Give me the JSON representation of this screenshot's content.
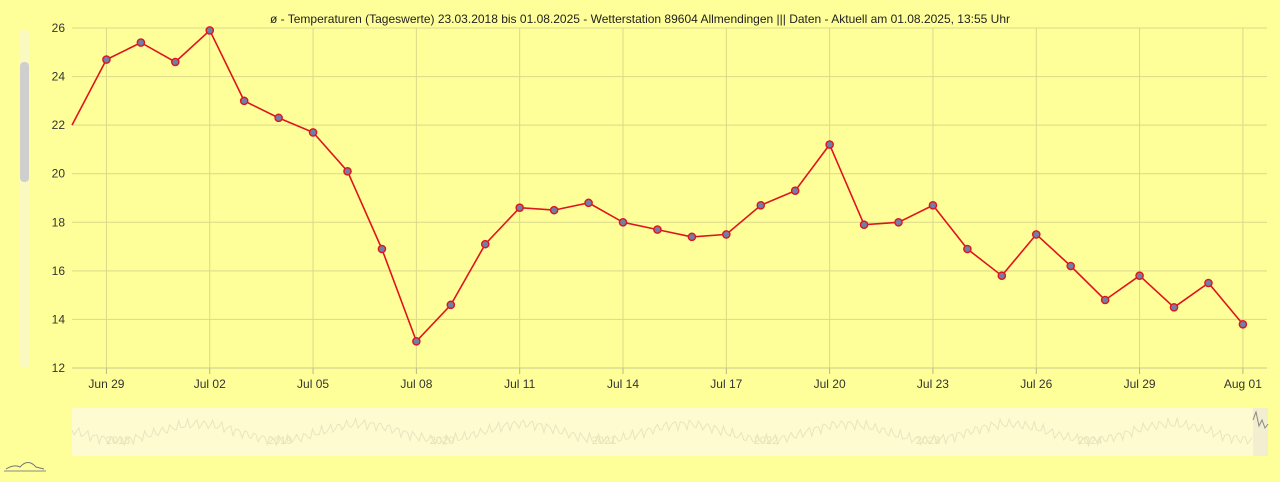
{
  "chart_data": {
    "type": "line",
    "title": "ø - Temperaturen (Tageswerte) 23.03.2018 bis 01.08.2025 - Wetterstation 89604 Allmendingen ||| Daten - Aktuell am 01.08.2025, 13:55 Uhr",
    "xlabel": "",
    "ylabel": "",
    "ylim": [
      12,
      26
    ],
    "y_ticks": [
      12,
      14,
      16,
      18,
      20,
      22,
      24,
      26
    ],
    "x_tick_labels": [
      {
        "date": "2025-06-29",
        "label": "Jun 29"
      },
      {
        "date": "2025-07-02",
        "label": "Jul 02"
      },
      {
        "date": "2025-07-05",
        "label": "Jul 05"
      },
      {
        "date": "2025-07-08",
        "label": "Jul 08"
      },
      {
        "date": "2025-07-11",
        "label": "Jul 11"
      },
      {
        "date": "2025-07-14",
        "label": "Jul 14"
      },
      {
        "date": "2025-07-17",
        "label": "Jul 17"
      },
      {
        "date": "2025-07-20",
        "label": "Jul 20"
      },
      {
        "date": "2025-07-23",
        "label": "Jul 23"
      },
      {
        "date": "2025-07-26",
        "label": "Jul 26"
      },
      {
        "date": "2025-07-29",
        "label": "Jul 29"
      },
      {
        "date": "2025-08-01",
        "label": "Aug 01"
      }
    ],
    "grid": true,
    "legend": "none",
    "colors": {
      "background": "#ffff99",
      "grid": "#d9d98a",
      "line": "#e0141e",
      "marker": "#6f7fa8",
      "navigator_bg": "#fffbd0",
      "navigator_line": "#e8e4c0"
    },
    "series": [
      {
        "x": [
          "2025-06-28",
          "2025-06-29",
          "2025-06-30",
          "2025-07-01",
          "2025-07-02",
          "2025-07-03",
          "2025-07-04",
          "2025-07-05",
          "2025-07-06",
          "2025-07-07",
          "2025-07-08",
          "2025-07-09",
          "2025-07-10",
          "2025-07-11",
          "2025-07-12",
          "2025-07-13",
          "2025-07-14",
          "2025-07-15",
          "2025-07-16",
          "2025-07-17",
          "2025-07-18",
          "2025-07-19",
          "2025-07-20",
          "2025-07-21",
          "2025-07-22",
          "2025-07-23",
          "2025-07-24",
          "2025-07-25",
          "2025-07-26",
          "2025-07-27",
          "2025-07-28",
          "2025-07-29",
          "2025-07-30",
          "2025-07-31",
          "2025-08-01"
        ],
        "values": [
          22.0,
          24.7,
          25.4,
          24.6,
          25.9,
          23.0,
          22.3,
          21.7,
          20.1,
          16.9,
          13.1,
          14.6,
          17.1,
          18.6,
          18.5,
          18.8,
          18.0,
          17.7,
          17.4,
          17.5,
          18.7,
          19.3,
          21.2,
          17.9,
          18.0,
          18.7,
          16.9,
          15.8,
          17.5,
          16.2,
          14.8,
          15.8,
          14.5,
          15.5,
          13.8
        ]
      }
    ],
    "navigator": {
      "year_labels": [
        "2018",
        "2019",
        "2020",
        "2021",
        "2022",
        "2023",
        "2024"
      ]
    }
  }
}
